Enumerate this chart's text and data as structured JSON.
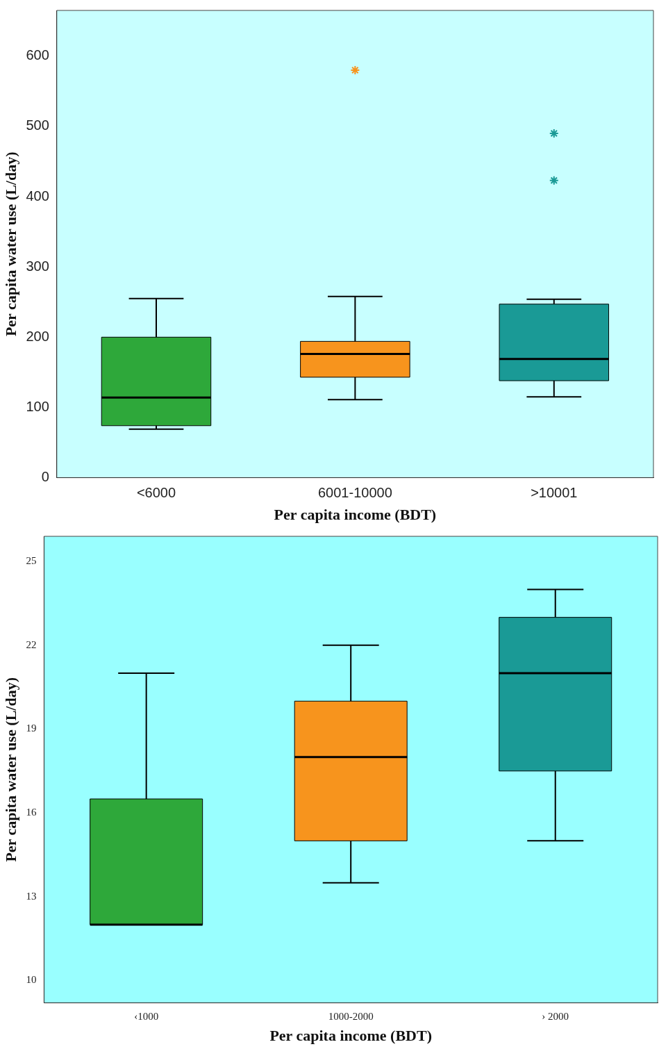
{
  "chart_data": [
    {
      "type": "box",
      "xlabel": "Per capita income (BDT)",
      "ylabel": "Per capita water use (L/day)",
      "categories": [
        "<6000",
        "6001-10000",
        ">10001"
      ],
      "colors": [
        "#2ea83a",
        "#f7941d",
        "#1a9a96"
      ],
      "marker": "star",
      "boxes": [
        {
          "low": 69,
          "q1": 74,
          "median": 114,
          "q3": 200,
          "high": 255
        },
        {
          "low": 111,
          "q1": 143,
          "median": 176,
          "q3": 194,
          "high": 258,
          "outliers": [
            580
          ]
        },
        {
          "low": 115,
          "q1": 138,
          "median": 169,
          "q3": 247,
          "high": 254,
          "outliers": [
            490,
            423
          ]
        }
      ],
      "ylim": [
        0,
        665
      ],
      "yticks": [
        0,
        100,
        200,
        300,
        400,
        500,
        600
      ]
    },
    {
      "type": "box",
      "xlabel": "Per capita income (BDT)",
      "ylabel": "Per capita water use (L/day)",
      "categories": [
        "‹1000",
        "1000-2000",
        "› 2000"
      ],
      "colors": [
        "#2ea83a",
        "#f7941d",
        "#1a9a96"
      ],
      "boxes": [
        {
          "low": 12,
          "q1": 12,
          "median": 12,
          "q3": 16.5,
          "high": 21
        },
        {
          "low": 13.5,
          "q1": 15,
          "median": 18,
          "q3": 20,
          "high": 22
        },
        {
          "low": 15,
          "q1": 17.5,
          "median": 21,
          "q3": 23,
          "high": 24
        }
      ],
      "ylim": [
        9.2,
        25.9
      ],
      "yticks": [
        10,
        13,
        16,
        19,
        22,
        25
      ]
    }
  ]
}
